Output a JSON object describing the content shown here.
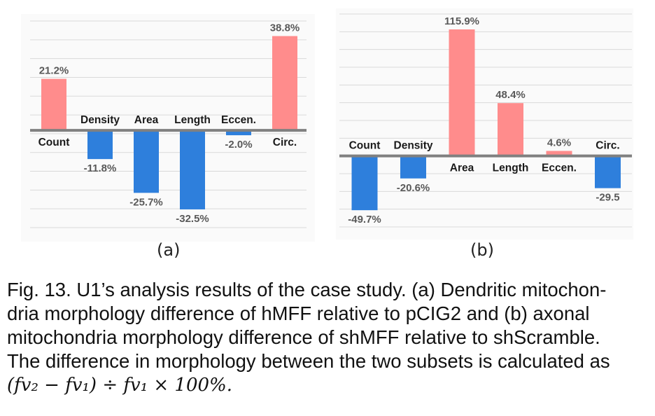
{
  "chart_data": [
    {
      "id": "a",
      "type": "bar",
      "panel_label": "(a)",
      "categories": [
        "Count",
        "Density",
        "Area",
        "Length",
        "Eccen.",
        "Circ."
      ],
      "values": [
        21.2,
        -11.8,
        -25.7,
        -32.5,
        -2.0,
        38.8
      ],
      "data_labels": [
        "21.2%",
        "-11.8%",
        "-25.7%",
        "-32.5%",
        "-2.0%",
        "38.8%"
      ],
      "ylim": [
        -40,
        45
      ],
      "grid": true,
      "colors": {
        "positive": "#ff8c8c",
        "negative": "#2e7fdc",
        "axis": "#808080"
      }
    },
    {
      "id": "b",
      "type": "bar",
      "panel_label": "(b)",
      "categories": [
        "Count",
        "Density",
        "Area",
        "Length",
        "Eccen.",
        "Circ."
      ],
      "values": [
        -49.7,
        -20.6,
        115.9,
        48.4,
        4.6,
        -29.5
      ],
      "data_labels": [
        "-49.7%",
        "-20.6%",
        "115.9%",
        "48.4%",
        "4.6%",
        "-29.5"
      ],
      "ylim": [
        -65,
        130
      ],
      "grid": true,
      "colors": {
        "positive": "#ff8c8c",
        "negative": "#2e7fdc",
        "axis": "#808080"
      }
    }
  ],
  "caption": {
    "line1": "Fig. 13. U1’s analysis results of the case study. (a) Dendritic mitochon-",
    "line2": "dria morphology difference of hMFF relative to pCIG2 and (b) axonal",
    "line3": "mitochondria morphology difference of shMFF relative to shScramble.",
    "line4": "The difference in morphology between the two subsets is calculated as",
    "formula": "(fv₂ − fv₁) ÷ fv₁ × 100%."
  }
}
